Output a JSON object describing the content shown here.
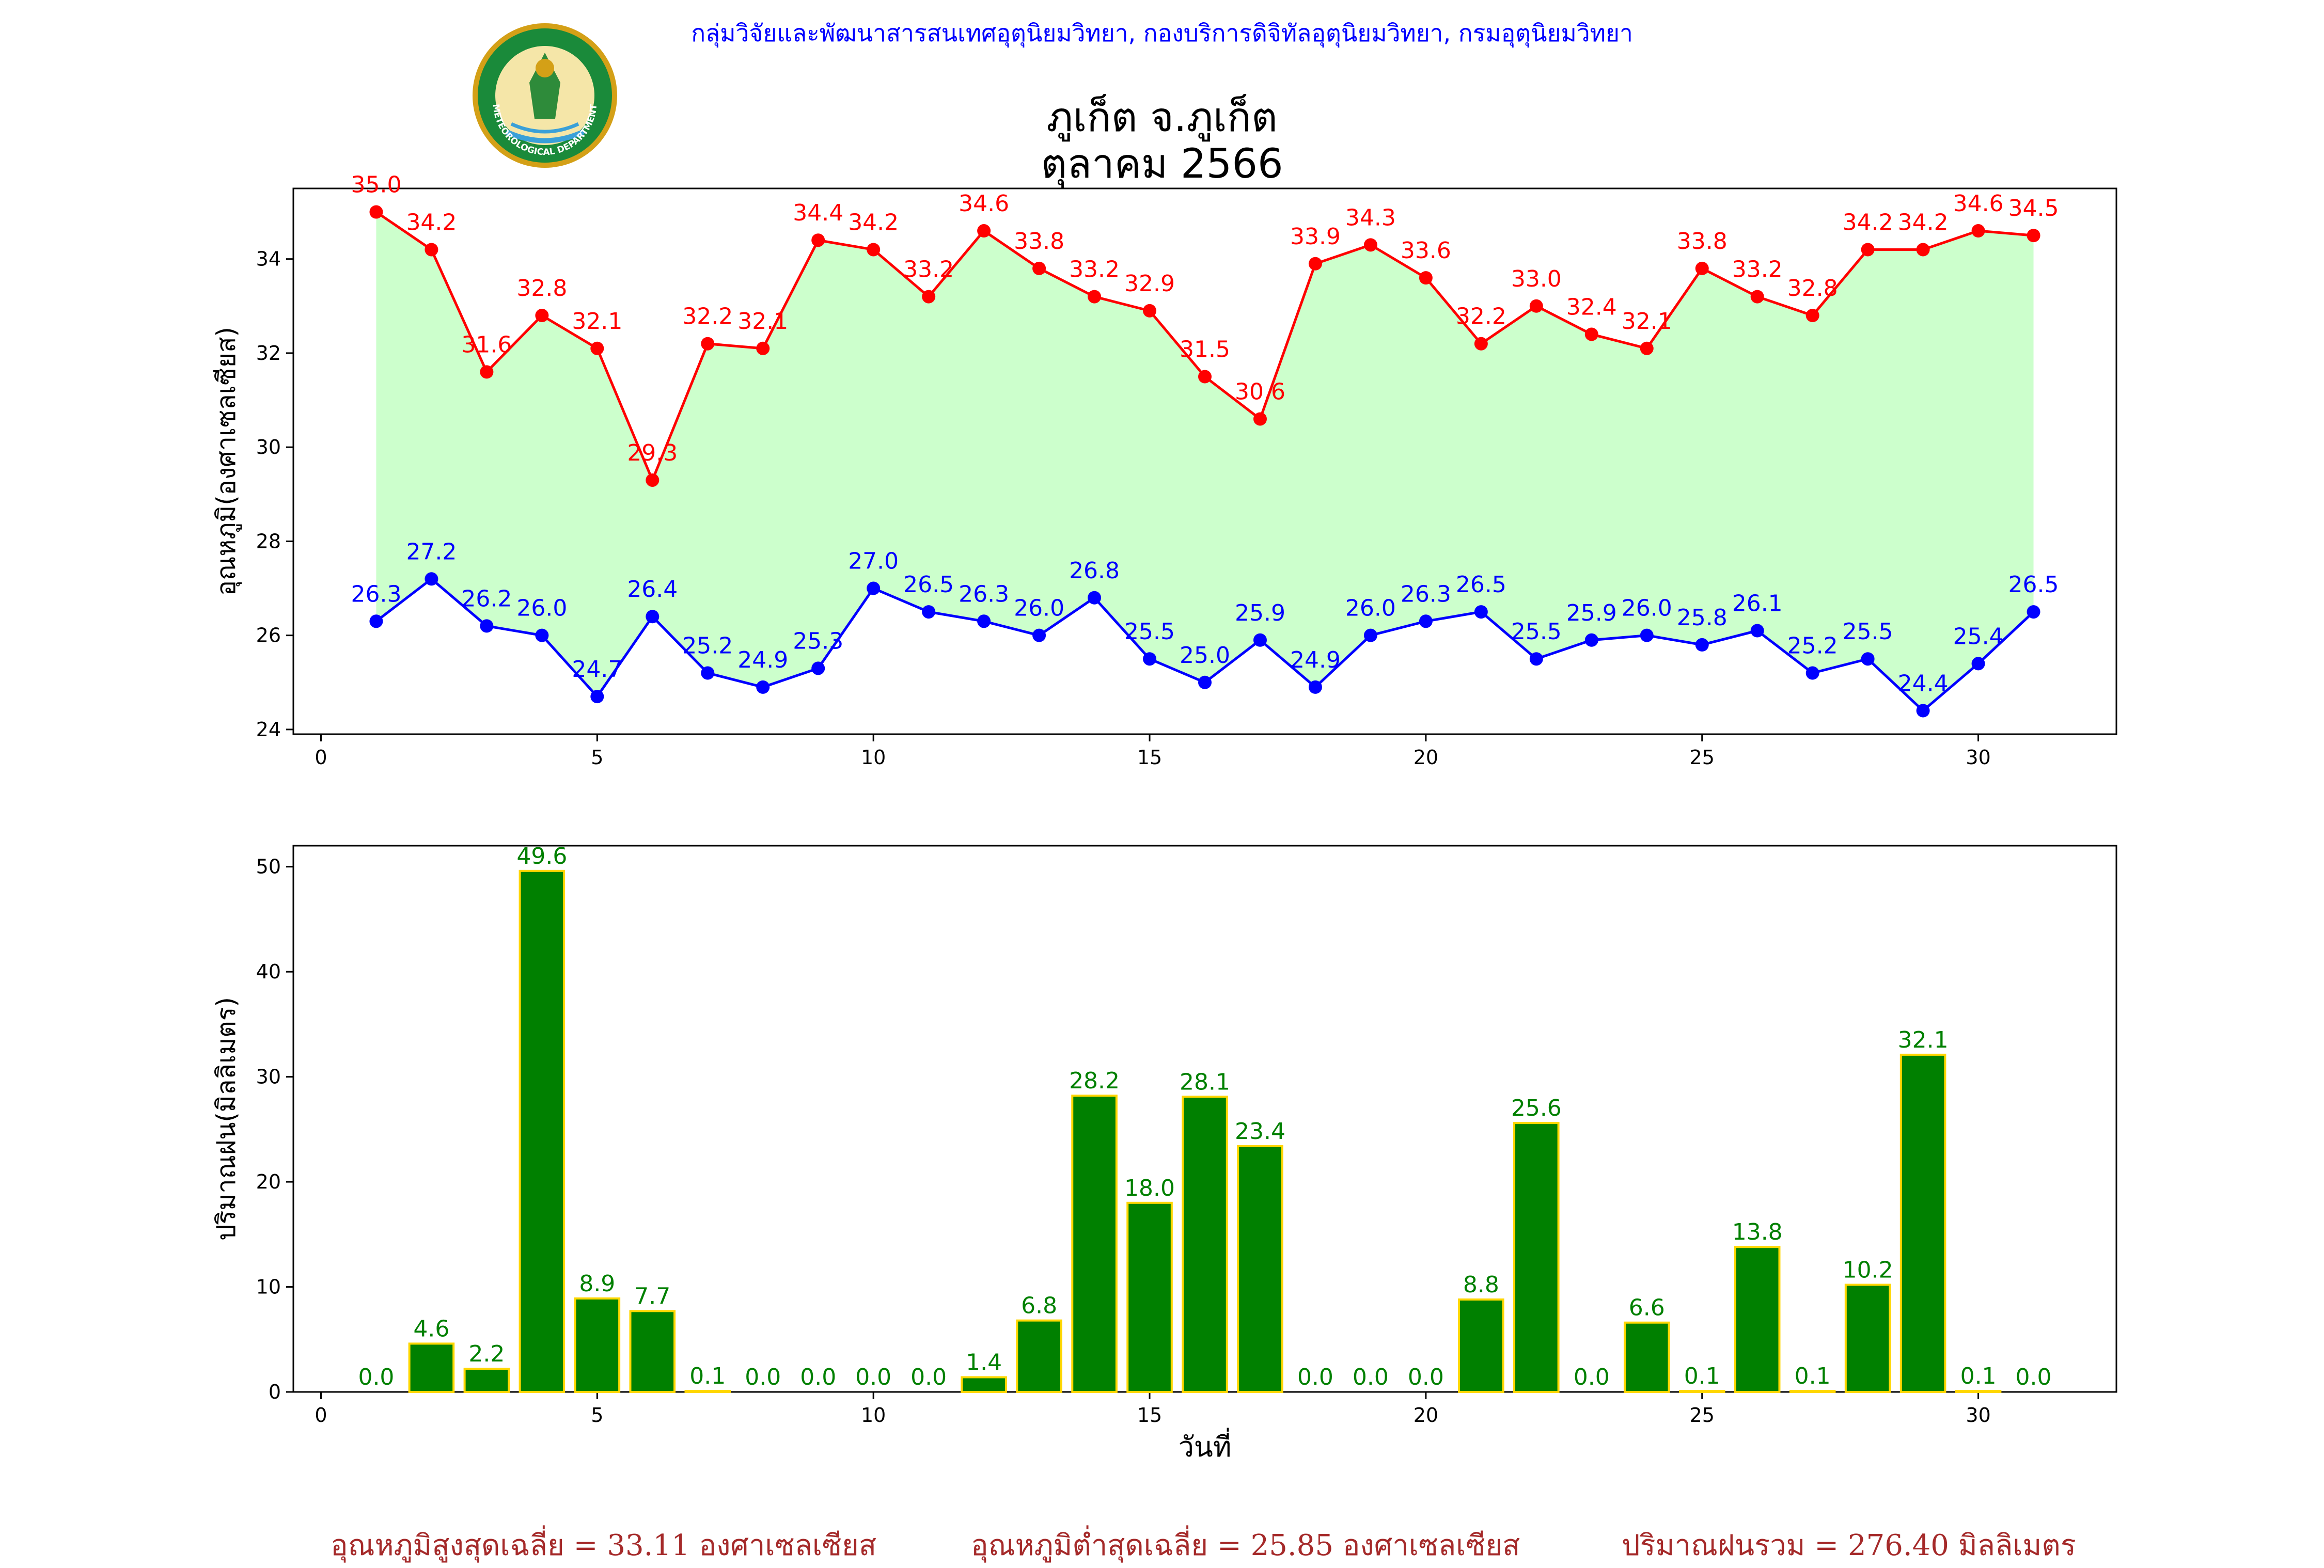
{
  "header": "กลุ่มวิจัยและพัฒนาสารสนเทศอุตุนิยมวิทยา, กองบริการดิจิทัลอุตุนิยมวิทยา, กรมอุตุนิยมวิทยา",
  "title_line1": "ภูเก็ต จ.ภูเก็ต",
  "title_line2": "ตุลาคม 2566",
  "logo_text": "METEOROLOGICAL DEPARTMENT",
  "colors": {
    "max_temp": "#ff0000",
    "min_temp": "#0000ff",
    "fill": "#ccffcc",
    "rain_bar": "#008000",
    "rain_edge": "#ffd700",
    "header": "#0000ff",
    "summary": "#a52a2a"
  },
  "chart_data": [
    {
      "type": "line",
      "ylabel": "อุณหภูมิ(องศาเซลเซียส)",
      "xlim": [
        -0.5,
        32.5
      ],
      "ylim": [
        23.9,
        35.5
      ],
      "xticks": [
        0,
        5,
        10,
        15,
        20,
        25,
        30
      ],
      "yticks": [
        24,
        26,
        28,
        30,
        32,
        34
      ],
      "fill_between": true,
      "x": [
        1,
        2,
        3,
        4,
        5,
        6,
        7,
        8,
        9,
        10,
        11,
        12,
        13,
        14,
        15,
        16,
        17,
        18,
        19,
        20,
        21,
        22,
        23,
        24,
        25,
        26,
        27,
        28,
        29,
        30,
        31
      ],
      "series": [
        {
          "key": "max",
          "values": [
            35.0,
            34.2,
            31.6,
            32.8,
            32.1,
            29.3,
            32.2,
            32.1,
            34.4,
            34.2,
            33.2,
            34.6,
            33.8,
            33.2,
            32.9,
            31.5,
            30.6,
            33.9,
            34.3,
            33.6,
            32.2,
            33.0,
            32.4,
            32.1,
            33.8,
            33.2,
            32.8,
            34.2,
            34.2,
            34.6,
            34.5
          ]
        },
        {
          "key": "min",
          "values": [
            26.3,
            27.2,
            26.2,
            26.0,
            24.7,
            26.4,
            25.2,
            24.9,
            25.3,
            27.0,
            26.5,
            26.3,
            26.0,
            26.8,
            25.5,
            25.0,
            25.9,
            24.9,
            26.0,
            26.3,
            26.5,
            25.5,
            25.9,
            26.0,
            25.8,
            26.1,
            25.2,
            25.5,
            24.4,
            25.4,
            26.5
          ]
        }
      ]
    },
    {
      "type": "bar",
      "ylabel": "ปริมาณฝน(มิลลิเมตร)",
      "xlabel": "วันที่",
      "xlim": [
        -0.5,
        32.5
      ],
      "ylim": [
        0,
        52
      ],
      "xticks": [
        0,
        5,
        10,
        15,
        20,
        25,
        30
      ],
      "yticks": [
        0,
        10,
        20,
        30,
        40,
        50
      ],
      "x": [
        1,
        2,
        3,
        4,
        5,
        6,
        7,
        8,
        9,
        10,
        11,
        12,
        13,
        14,
        15,
        16,
        17,
        18,
        19,
        20,
        21,
        22,
        23,
        24,
        25,
        26,
        27,
        28,
        29,
        30,
        31
      ],
      "values": [
        0.0,
        4.6,
        2.2,
        49.6,
        8.9,
        7.7,
        0.1,
        0.0,
        0.0,
        0.0,
        0.0,
        1.4,
        6.8,
        28.2,
        18.0,
        28.1,
        23.4,
        0.0,
        0.0,
        0.0,
        8.8,
        25.6,
        0.0,
        6.6,
        0.1,
        13.8,
        0.1,
        10.2,
        32.1,
        0.1,
        0.0
      ]
    }
  ],
  "summary": {
    "max_avg": "อุณหภูมิสูงสุดเฉลี่ย = 33.11 องศาเซลเซียส",
    "min_avg": "อุณหภูมิต่ำสุดเฉลี่ย = 25.85 องศาเซลเซียส",
    "rain_total": "ปริมาณฝนรวม = 276.40 มิลลิเมตร"
  }
}
